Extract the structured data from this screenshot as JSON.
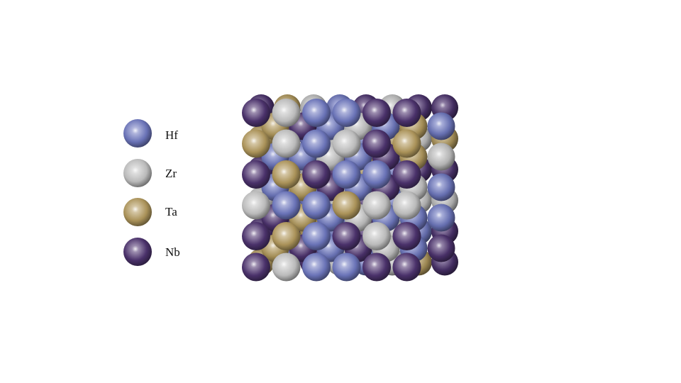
{
  "legend": {
    "items": [
      {
        "key": "Hf",
        "label": "Hf",
        "color": "#6f78c0"
      },
      {
        "key": "Zr",
        "label": "Zr",
        "color": "#c4c4c4"
      },
      {
        "key": "Ta",
        "label": "Ta",
        "color": "#b39a5e"
      },
      {
        "key": "Nb",
        "label": "Nb",
        "color": "#4e3470"
      }
    ]
  },
  "structure": {
    "description_free": true,
    "back_layer": [
      [
        "Nb",
        "Ta",
        "Zr",
        "Hf",
        "Nb",
        "Zr",
        "Nb",
        "Nb"
      ],
      [
        "Ta",
        "Nb",
        "Hf",
        "Zr",
        "Hf",
        "Ta",
        "Zr",
        "Ta"
      ],
      [
        "Nb",
        "Hf",
        "Zr",
        "Nb",
        "Ta",
        "Hf",
        "Nb",
        "Nb"
      ],
      [
        "Zr",
        "Ta",
        "Hf",
        "Zr",
        "Nb",
        "Hf",
        "Zr",
        "Zr"
      ],
      [
        "Nb",
        "Nb",
        "Ta",
        "Hf",
        "Nb",
        "Zr",
        "Hf",
        "Nb"
      ],
      [
        "Ta",
        "Hf",
        "Nb",
        "Zr",
        "Hf",
        "Zr",
        "Ta",
        "Nb"
      ]
    ],
    "mid_layer": [
      [
        "Ta",
        "Nb",
        "Hf",
        "Zr",
        "Hf",
        "Ta",
        "Hf"
      ],
      [
        "Hf",
        "Hf",
        "Zr",
        "Hf",
        "Nb",
        "Ta",
        "Zr"
      ],
      [
        "Hf",
        "Ta",
        "Nb",
        "Hf",
        "Nb",
        "Zr",
        "Hf"
      ],
      [
        "Nb",
        "Ta",
        "Hf",
        "Zr",
        "Hf",
        "Hf",
        "Hf"
      ],
      [
        "Ta",
        "Nb",
        "Hf",
        "Nb",
        "Zr",
        "Hf",
        "Nb"
      ]
    ],
    "front_layer": [
      [
        "Nb",
        "Zr",
        "Hf",
        "Hf",
        "Nb",
        "Nb"
      ],
      [
        "Ta",
        "Zr",
        "Hf",
        "Zr",
        "Nb",
        "Ta"
      ],
      [
        "Nb",
        "Ta",
        "Nb",
        "Hf",
        "Hf",
        "Nb"
      ],
      [
        "Zr",
        "Hf",
        "Hf",
        "Ta",
        "Zr",
        "Zr"
      ],
      [
        "Nb",
        "Ta",
        "Hf",
        "Nb",
        "Zr",
        "Nb"
      ],
      [
        "Nb",
        "Zr",
        "Hf",
        "Hf",
        "Nb",
        "Nb"
      ]
    ]
  }
}
